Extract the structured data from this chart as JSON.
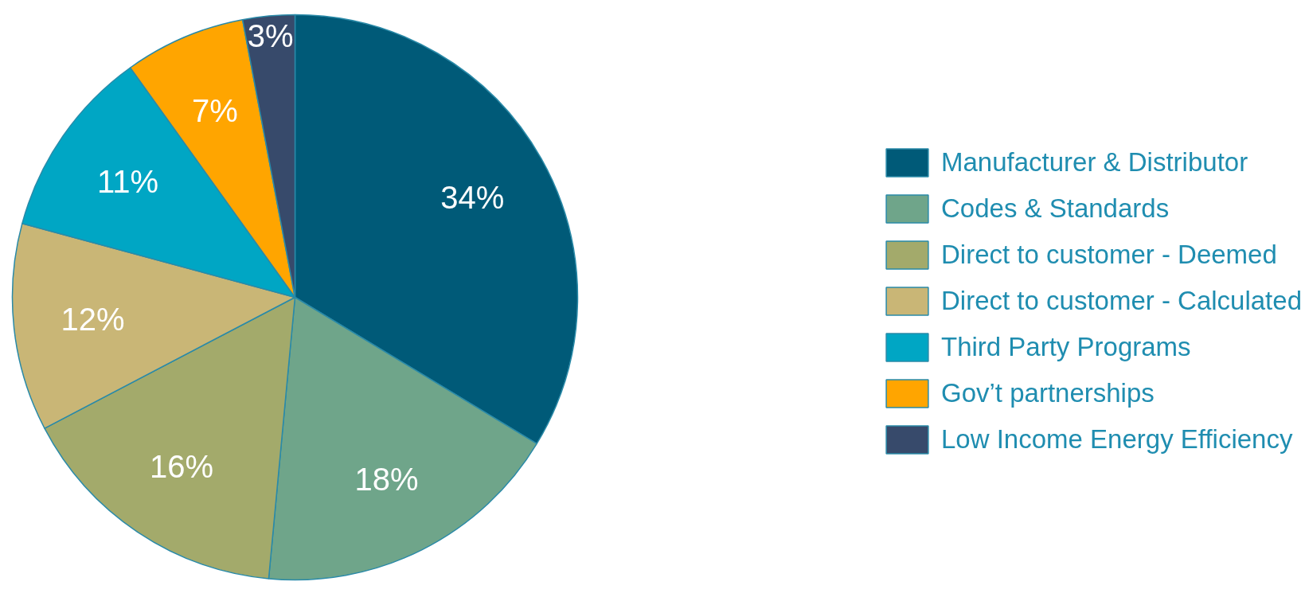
{
  "chart_data": {
    "type": "pie",
    "categories": [
      "Manufacturer & Distributor",
      "Codes & Standards",
      "Direct to customer - Deemed",
      "Direct to customer - Calculated",
      "Third Party Programs",
      "Gov’t partnerships",
      "Low Income Energy Efficiency"
    ],
    "values": [
      34,
      18,
      16,
      12,
      11,
      7,
      3
    ],
    "colors": [
      "#005a78",
      "#6fa58a",
      "#a3aa6b",
      "#c9b676",
      "#00a6c4",
      "#ffa500",
      "#374a6b"
    ],
    "value_labels": [
      "34%",
      "18%",
      "16%",
      "12%",
      "11%",
      "7%",
      "3%"
    ],
    "legend": "right"
  }
}
